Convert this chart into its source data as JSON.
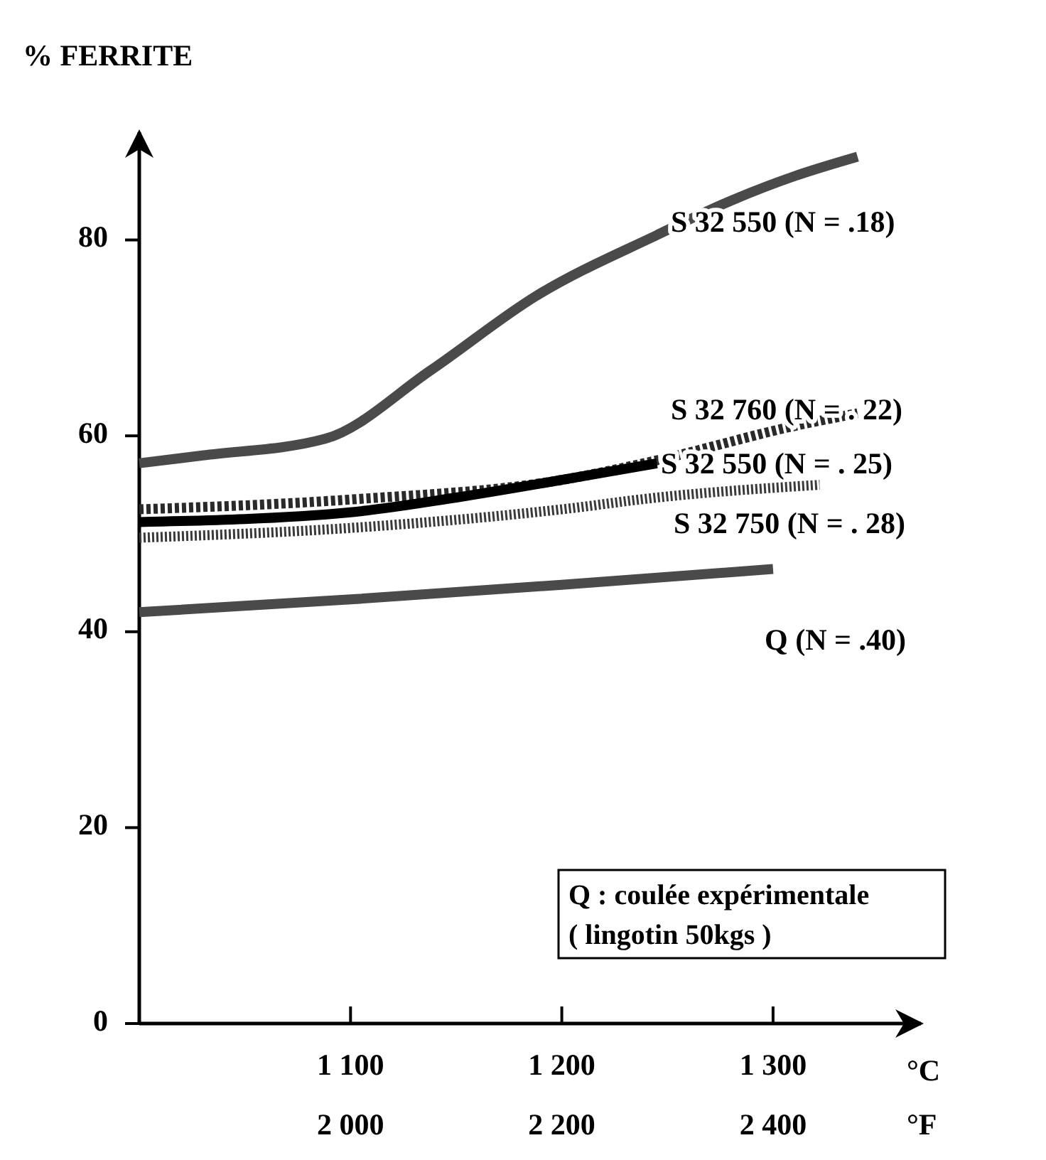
{
  "chart_data": {
    "type": "line",
    "ylabel": "% FERRITE",
    "xlabel": "°C",
    "x2label": "°F",
    "xlim": [
      1000,
      1370
    ],
    "xticks": [
      {
        "value": 1100,
        "label": "1 100"
      },
      {
        "value": 1200,
        "label": "1 200"
      },
      {
        "value": 1300,
        "label": "1 300"
      }
    ],
    "x2lim": [
      1800,
      2540
    ],
    "x2ticks": [
      {
        "value": 2000,
        "label": "2 000"
      },
      {
        "value": 2200,
        "label": "2 200"
      },
      {
        "value": 2400,
        "label": "2 400"
      }
    ],
    "ylim": [
      0,
      91
    ],
    "yticks": [
      0,
      20,
      40,
      60,
      80
    ],
    "grid": false,
    "legend": false,
    "marker": "none",
    "series": [
      {
        "name": "S 32 550 (N = .18)",
        "color": "#4a4a4a",
        "line_style": "solid",
        "x": [
          1000,
          1030,
          1088,
          1138,
          1188,
          1245,
          1280,
          1310,
          1340
        ],
        "values": [
          57.2,
          58,
          59.7,
          66.7,
          74.3,
          80.5,
          84,
          86.5,
          88.5
        ]
      },
      {
        "name": "S 32 760 (N = . 22)",
        "color": "#2a2a2a",
        "line_style": "dashed",
        "x": [
          1000,
          1100,
          1200,
          1245,
          1310,
          1340
        ],
        "values": [
          52.5,
          53.5,
          55.5,
          57.5,
          61,
          62.3
        ]
      },
      {
        "name": "S 32 550 (N = . 25)",
        "color": "#000000",
        "line_style": "solid",
        "x": [
          1000,
          1100,
          1150,
          1200,
          1245
        ],
        "values": [
          51.2,
          52.2,
          53.7,
          55.5,
          57.2
        ]
      },
      {
        "name": "S 32 750 (N = . 28)",
        "color": "#3a3a3a",
        "line_style": "dotted",
        "x": [
          1000,
          1100,
          1200,
          1245,
          1322
        ],
        "values": [
          49.6,
          50.6,
          52.5,
          53.7,
          55
        ]
      },
      {
        "name": "Q (N = .40)",
        "color": "#4a4a4a",
        "line_style": "solid",
        "x": [
          1000,
          1100,
          1200,
          1300
        ],
        "values": [
          42,
          43.3,
          44.8,
          46.4
        ]
      }
    ],
    "annotations": [
      "Q : coulée expérimentale",
      "( lingotin 50kgs )"
    ]
  }
}
